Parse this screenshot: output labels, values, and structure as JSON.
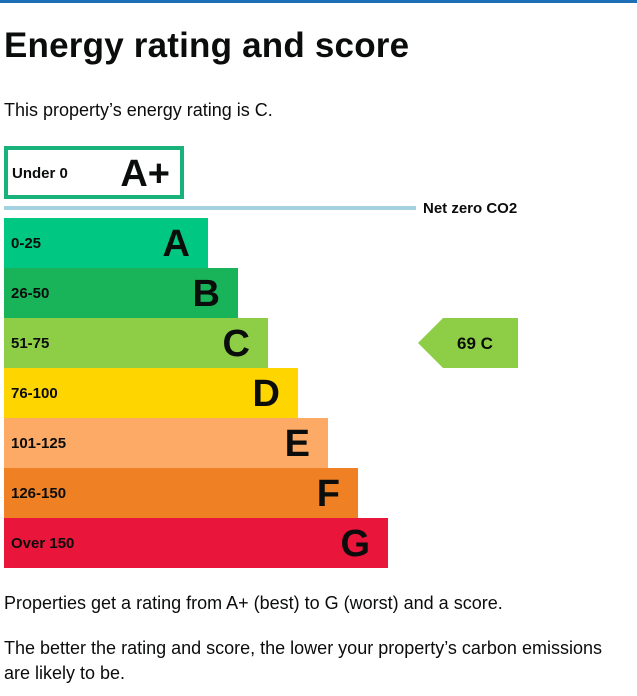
{
  "page": {
    "title": "Energy rating and score",
    "intro": "This property’s energy rating is C.",
    "para1": "Properties get a rating from A+ (best) to G (worst) and a score.",
    "para2": "The better the rating and score, the lower your property’s carbon emissions are likely to be."
  },
  "chart_data": {
    "type": "bar",
    "categories": [
      "A+",
      "A",
      "B",
      "C",
      "D",
      "E",
      "F",
      "G"
    ],
    "bands": [
      {
        "letter": "A+",
        "range": "Under 0",
        "color": "#ffffff",
        "border": "#19b27b"
      },
      {
        "letter": "A",
        "range": "0-25",
        "color": "#00c781"
      },
      {
        "letter": "B",
        "range": "26-50",
        "color": "#19b459"
      },
      {
        "letter": "C",
        "range": "51-75",
        "color": "#8dce46"
      },
      {
        "letter": "D",
        "range": "76-100",
        "color": "#ffd500"
      },
      {
        "letter": "E",
        "range": "101-125",
        "color": "#fcaa65"
      },
      {
        "letter": "F",
        "range": "126-150",
        "color": "#ef8023"
      },
      {
        "letter": "G",
        "range": "Over 150",
        "color": "#e9153b"
      }
    ],
    "net_zero_label": "Net zero CO2",
    "net_zero_color": "#a5d2e0",
    "current": {
      "score": "69",
      "rating": "C",
      "color": "#8dce46"
    }
  }
}
